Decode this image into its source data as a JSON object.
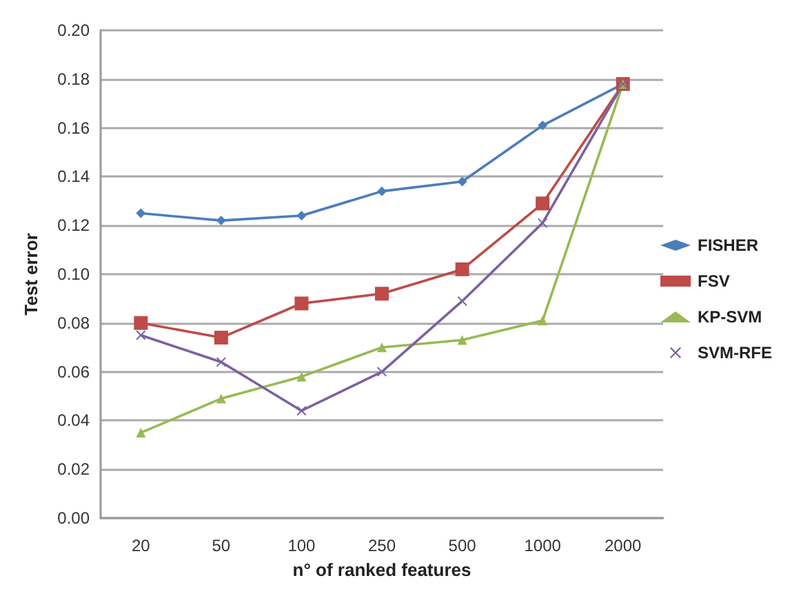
{
  "chart_data": {
    "type": "line",
    "xlabel": "n° of ranked features",
    "ylabel": "Test error",
    "categories": [
      "20",
      "50",
      "100",
      "250",
      "500",
      "1000",
      "2000"
    ],
    "ylim": [
      0,
      0.2
    ],
    "yticks": [
      {
        "value": 0,
        "label": "0.00"
      },
      {
        "value": 0.02,
        "label": "0.02"
      },
      {
        "value": 0.04,
        "label": "0.04"
      },
      {
        "value": 0.06,
        "label": "0.06"
      },
      {
        "value": 0.08,
        "label": "0.08"
      },
      {
        "value": 0.1,
        "label": "0.10"
      },
      {
        "value": 0.12,
        "label": "0.12"
      },
      {
        "value": 0.14,
        "label": "0.14"
      },
      {
        "value": 0.16,
        "label": "0.16"
      },
      {
        "value": 0.18,
        "label": "0.18"
      },
      {
        "value": 0.2,
        "label": "0.20"
      }
    ],
    "grid": "y",
    "legend": "right",
    "series": [
      {
        "name": "FISHER",
        "color": "#4a7ebb",
        "marker": "diamond",
        "values": [
          0.125,
          0.122,
          0.124,
          0.134,
          0.138,
          0.161,
          0.178
        ]
      },
      {
        "name": "FSV",
        "color": "#be4b48",
        "marker": "square",
        "values": [
          0.08,
          0.074,
          0.088,
          0.092,
          0.102,
          0.129,
          0.178
        ]
      },
      {
        "name": "KP-SVM",
        "color": "#98b954",
        "marker": "triangle",
        "values": [
          0.035,
          0.049,
          0.058,
          0.07,
          0.073,
          0.081,
          0.178
        ]
      },
      {
        "name": "SVM-RFE",
        "color": "#7d60a0",
        "marker": "cross",
        "values": [
          0.075,
          0.064,
          0.044,
          0.06,
          0.089,
          0.121,
          0.178
        ]
      }
    ]
  }
}
